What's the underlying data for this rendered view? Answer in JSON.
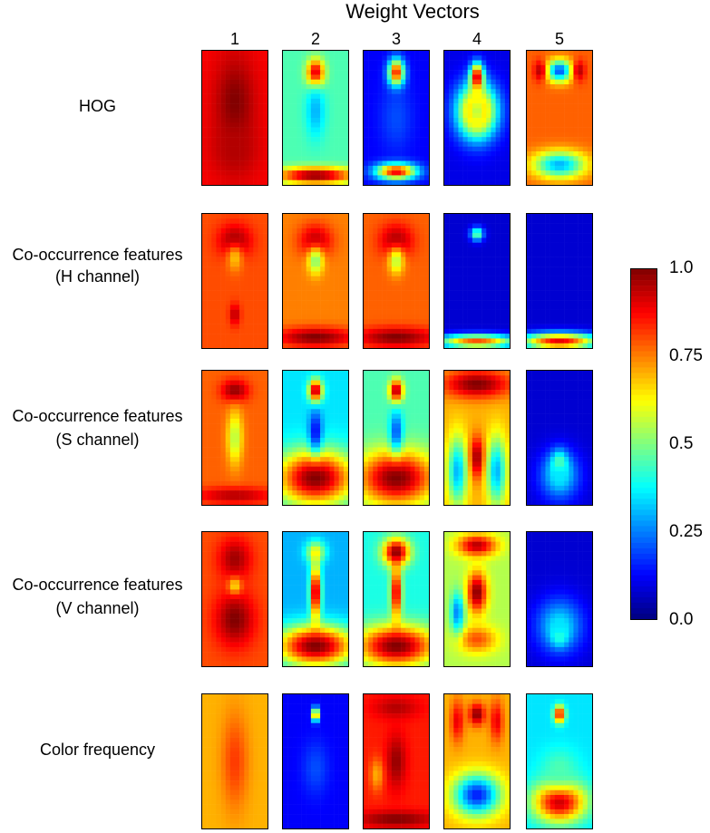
{
  "chart_data": {
    "type": "heatmap",
    "title": "Weight Vectors",
    "columns": [
      "1",
      "2",
      "3",
      "4",
      "5"
    ],
    "rows": [
      {
        "label_lines": [
          "HOG"
        ],
        "maps": [
          "hog-1",
          "hog-2",
          "hog-3",
          "hog-4",
          "hog-5"
        ]
      },
      {
        "label_lines": [
          "Co-occurrence features",
          "(H channel)"
        ],
        "maps": [
          "h-1",
          "h-2",
          "h-3",
          "h-4",
          "h-5"
        ]
      },
      {
        "label_lines": [
          "Co-occurrence features",
          "(S channel)"
        ],
        "maps": [
          "s-1",
          "s-2",
          "s-3",
          "s-4",
          "s-5"
        ]
      },
      {
        "label_lines": [
          "Co-occurrence features",
          "(V channel)"
        ],
        "maps": [
          "v-1",
          "v-2",
          "v-3",
          "v-4",
          "v-5"
        ]
      },
      {
        "label_lines": [
          "Color frequency"
        ],
        "maps": [
          "c-1",
          "c-2",
          "c-3",
          "c-4",
          "c-5"
        ]
      }
    ],
    "colorbar": {
      "colormap": "jet",
      "range": [
        0.0,
        1.0
      ],
      "tick_labels": [
        "1.0",
        "0.75",
        "0.5",
        "0.25",
        "0.0"
      ],
      "tick_values": [
        1.0,
        0.75,
        0.5,
        0.25,
        0.0
      ]
    },
    "map_values": {
      "hog-1": {
        "base": 0.88,
        "blobs": [
          [
            0.5,
            0.4,
            0.3,
            0.35,
            1.0
          ],
          [
            0.5,
            0.75,
            0.35,
            0.2,
            0.95
          ]
        ]
      },
      "hog-2": {
        "base": 0.45,
        "blobs": [
          [
            0.5,
            0.17,
            0.13,
            0.1,
            1.0
          ],
          [
            0.5,
            0.93,
            0.6,
            0.06,
            1.0
          ],
          [
            0.5,
            0.45,
            0.15,
            0.2,
            0.3
          ]
        ]
      },
      "hog-3": {
        "base": 0.12,
        "blobs": [
          [
            0.5,
            0.17,
            0.12,
            0.1,
            1.0
          ],
          [
            0.5,
            0.9,
            0.3,
            0.06,
            0.95
          ],
          [
            0.5,
            0.5,
            0.25,
            0.25,
            0.2
          ]
        ]
      },
      "hog-4": {
        "base": 0.1,
        "blobs": [
          [
            0.5,
            0.2,
            0.1,
            0.1,
            1.0
          ],
          [
            0.5,
            0.45,
            0.3,
            0.2,
            0.85
          ],
          [
            0.5,
            0.45,
            0.15,
            0.12,
            0.55
          ]
        ]
      },
      "hog-5": {
        "base": 0.78,
        "blobs": [
          [
            0.5,
            0.15,
            0.2,
            0.08,
            0.2
          ],
          [
            0.5,
            0.85,
            0.4,
            0.1,
            0.3
          ],
          [
            0.2,
            0.15,
            0.1,
            0.08,
            0.95
          ],
          [
            0.8,
            0.15,
            0.1,
            0.08,
            0.95
          ]
        ]
      },
      "h-1": {
        "base": 0.8,
        "blobs": [
          [
            0.5,
            0.2,
            0.25,
            0.12,
            0.98
          ],
          [
            0.5,
            0.33,
            0.12,
            0.1,
            0.68
          ],
          [
            0.5,
            0.75,
            0.08,
            0.08,
            0.95
          ]
        ]
      },
      "h-2": {
        "base": 0.75,
        "blobs": [
          [
            0.5,
            0.2,
            0.25,
            0.12,
            0.95
          ],
          [
            0.5,
            0.35,
            0.12,
            0.1,
            0.5
          ],
          [
            0.5,
            0.92,
            0.6,
            0.07,
            1.0
          ]
        ]
      },
      "h-3": {
        "base": 0.78,
        "blobs": [
          [
            0.5,
            0.2,
            0.25,
            0.12,
            0.97
          ],
          [
            0.5,
            0.35,
            0.12,
            0.1,
            0.55
          ],
          [
            0.5,
            0.92,
            0.6,
            0.07,
            1.0
          ]
        ]
      },
      "h-4": {
        "base": 0.08,
        "blobs": [
          [
            0.5,
            0.15,
            0.1,
            0.05,
            0.5
          ],
          [
            0.5,
            0.95,
            0.6,
            0.05,
            0.8
          ]
        ]
      },
      "h-5": {
        "base": 0.08,
        "blobs": [
          [
            0.5,
            0.95,
            0.6,
            0.06,
            0.9
          ]
        ]
      },
      "s-1": {
        "base": 0.78,
        "blobs": [
          [
            0.5,
            0.15,
            0.2,
            0.08,
            1.0
          ],
          [
            0.5,
            0.5,
            0.12,
            0.2,
            0.55
          ],
          [
            0.5,
            0.93,
            0.6,
            0.06,
            0.95
          ]
        ]
      },
      "s-2": {
        "base": 0.35,
        "blobs": [
          [
            0.5,
            0.15,
            0.1,
            0.08,
            1.0
          ],
          [
            0.5,
            0.8,
            0.6,
            0.2,
            1.0
          ],
          [
            0.5,
            0.45,
            0.1,
            0.15,
            0.12
          ]
        ]
      },
      "s-3": {
        "base": 0.45,
        "blobs": [
          [
            0.5,
            0.15,
            0.1,
            0.08,
            1.0
          ],
          [
            0.5,
            0.8,
            0.6,
            0.2,
            1.0
          ],
          [
            0.5,
            0.45,
            0.1,
            0.15,
            0.2
          ]
        ]
      },
      "s-4": {
        "base": 0.7,
        "blobs": [
          [
            0.5,
            0.1,
            0.5,
            0.1,
            1.0
          ],
          [
            0.5,
            0.65,
            0.12,
            0.15,
            1.0
          ],
          [
            0.2,
            0.75,
            0.15,
            0.25,
            0.3
          ],
          [
            0.8,
            0.75,
            0.15,
            0.25,
            0.3
          ]
        ]
      },
      "s-5": {
        "base": 0.08,
        "blobs": [
          [
            0.5,
            0.72,
            0.12,
            0.1,
            0.85
          ],
          [
            0.5,
            0.78,
            0.3,
            0.18,
            0.35
          ]
        ]
      },
      "v-1": {
        "base": 0.8,
        "blobs": [
          [
            0.5,
            0.2,
            0.25,
            0.15,
            0.97
          ],
          [
            0.5,
            0.65,
            0.3,
            0.2,
            1.0
          ],
          [
            0.5,
            0.4,
            0.1,
            0.06,
            0.65
          ]
        ]
      },
      "v-2": {
        "base": 0.3,
        "blobs": [
          [
            0.5,
            0.15,
            0.15,
            0.08,
            0.6
          ],
          [
            0.5,
            0.45,
            0.08,
            0.2,
            1.0
          ],
          [
            0.5,
            0.85,
            0.6,
            0.15,
            1.0
          ]
        ]
      },
      "v-3": {
        "base": 0.4,
        "blobs": [
          [
            0.5,
            0.15,
            0.2,
            0.1,
            1.0
          ],
          [
            0.5,
            0.45,
            0.08,
            0.2,
            0.95
          ],
          [
            0.5,
            0.85,
            0.6,
            0.15,
            1.0
          ]
        ]
      },
      "v-4": {
        "base": 0.55,
        "blobs": [
          [
            0.5,
            0.1,
            0.3,
            0.08,
            0.95
          ],
          [
            0.5,
            0.45,
            0.15,
            0.15,
            1.0
          ],
          [
            0.5,
            0.8,
            0.3,
            0.1,
            0.8
          ],
          [
            0.2,
            0.6,
            0.1,
            0.15,
            0.25
          ]
        ]
      },
      "v-5": {
        "base": 0.08,
        "blobs": [
          [
            0.5,
            0.75,
            0.12,
            0.08,
            0.85
          ],
          [
            0.5,
            0.7,
            0.35,
            0.2,
            0.35
          ]
        ]
      },
      "c-1": {
        "base": 0.7,
        "blobs": [
          [
            0.5,
            0.5,
            0.2,
            0.35,
            0.82
          ]
        ]
      },
      "c-2": {
        "base": 0.12,
        "blobs": [
          [
            0.5,
            0.15,
            0.05,
            0.05,
            0.9
          ],
          [
            0.5,
            0.16,
            0.025,
            0.025,
            1.0
          ],
          [
            0.5,
            0.55,
            0.2,
            0.2,
            0.2
          ]
        ]
      },
      "c-3": {
        "base": 0.85,
        "blobs": [
          [
            0.5,
            0.1,
            0.35,
            0.08,
            0.95
          ],
          [
            0.5,
            0.5,
            0.15,
            0.2,
            0.98
          ],
          [
            0.5,
            0.93,
            0.6,
            0.06,
            1.0
          ],
          [
            0.2,
            0.6,
            0.1,
            0.12,
            0.7
          ]
        ]
      },
      "c-4": {
        "base": 0.7,
        "blobs": [
          [
            0.5,
            0.15,
            0.12,
            0.08,
            1.0
          ],
          [
            0.5,
            0.75,
            0.35,
            0.15,
            0.15
          ],
          [
            0.2,
            0.2,
            0.1,
            0.15,
            0.9
          ],
          [
            0.8,
            0.2,
            0.1,
            0.15,
            0.9
          ]
        ]
      },
      "c-5": {
        "base": 0.35,
        "blobs": [
          [
            0.5,
            0.15,
            0.08,
            0.06,
            1.0
          ],
          [
            0.5,
            0.15,
            0.03,
            0.03,
            0.5
          ],
          [
            0.5,
            0.8,
            0.4,
            0.15,
            0.95
          ],
          [
            0.5,
            0.55,
            0.3,
            0.15,
            0.45
          ]
        ]
      }
    }
  }
}
